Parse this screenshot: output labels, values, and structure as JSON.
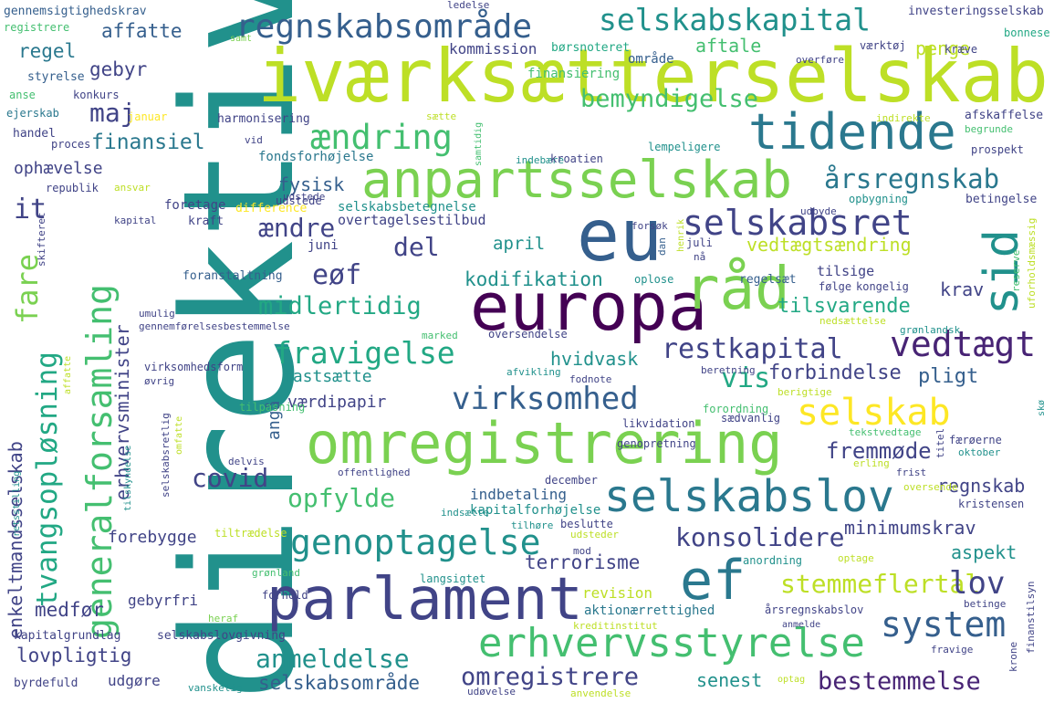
{
  "palette": [
    "#440154",
    "#482475",
    "#414487",
    "#355f8d",
    "#2a788e",
    "#21918c",
    "#22a884",
    "#44bf70",
    "#7ad151",
    "#bddf26",
    "#fde725"
  ],
  "words": [
    {
      "text": "direktiv",
      "color": "#21918c"
    },
    {
      "text": "iværksætterselskab",
      "color": "#bddf26"
    },
    {
      "text": "europa",
      "color": "#440154"
    },
    {
      "text": "eu",
      "color": "#355f8d"
    },
    {
      "text": "omregistrering",
      "color": "#7ad151"
    },
    {
      "text": "parlament",
      "color": "#414487"
    },
    {
      "text": "anpartsselskab",
      "color": "#7ad151"
    },
    {
      "text": "råd",
      "color": "#7ad151"
    },
    {
      "text": "tidende",
      "color": "#2a788e"
    },
    {
      "text": "selskabslov",
      "color": "#2a788e"
    },
    {
      "text": "ef",
      "color": "#2a788e"
    },
    {
      "text": "erhvervsstyrelse",
      "color": "#44bf70"
    },
    {
      "text": "regnskabsområde",
      "color": "#355f8d"
    },
    {
      "text": "selskabskapital",
      "color": "#21918c"
    },
    {
      "text": "generalforsamling",
      "color": "#44bf70"
    },
    {
      "text": "genoptagelse",
      "color": "#21918c"
    },
    {
      "text": "selskabsret",
      "color": "#414487"
    },
    {
      "text": "sid",
      "color": "#21918c"
    },
    {
      "text": "selskab",
      "color": "#fde725"
    },
    {
      "text": "tvangsopløsning",
      "color": "#22a884"
    },
    {
      "text": "vedtægt",
      "color": "#482475"
    },
    {
      "text": "virksomhed",
      "color": "#355f8d"
    },
    {
      "text": "fravigelse",
      "color": "#22a884"
    },
    {
      "text": "ændring",
      "color": "#44bf70"
    },
    {
      "text": "fare",
      "color": "#7ad151"
    },
    {
      "text": "midlertidig",
      "color": "#22a884"
    },
    {
      "text": "restkapital",
      "color": "#414487"
    },
    {
      "text": "bemyndigelse",
      "color": "#44bf70"
    },
    {
      "text": "årsregnskab",
      "color": "#2a788e"
    },
    {
      "text": "system",
      "color": "#355f8d"
    },
    {
      "text": "opfylde",
      "color": "#44bf70"
    },
    {
      "text": "konsolidere",
      "color": "#414487"
    },
    {
      "text": "omregistrere",
      "color": "#414487"
    },
    {
      "text": "anmeldelse",
      "color": "#21918c"
    },
    {
      "text": "stemmeflertal",
      "color": "#bddf26"
    },
    {
      "text": "bestemmelse",
      "color": "#482475"
    },
    {
      "text": "enkeltmandsselskab",
      "color": "#414487"
    },
    {
      "text": "erhvervsminister",
      "color": "#414487"
    },
    {
      "text": "lov",
      "color": "#414487"
    },
    {
      "text": "fremmøde",
      "color": "#414487"
    },
    {
      "text": "covid",
      "color": "#414487"
    },
    {
      "text": "eøf",
      "color": "#414487"
    },
    {
      "text": "ændre",
      "color": "#414487"
    },
    {
      "text": "del",
      "color": "#414487"
    },
    {
      "text": "vis",
      "color": "#22a884"
    },
    {
      "text": "it",
      "color": "#414487"
    },
    {
      "text": "maj",
      "color": "#414487"
    },
    {
      "text": "finansiel",
      "color": "#2a788e"
    },
    {
      "text": "affatte",
      "color": "#355f8d"
    },
    {
      "text": "regel",
      "color": "#2a788e"
    },
    {
      "text": "gebyr",
      "color": "#414487"
    },
    {
      "text": "fysisk",
      "color": "#355f8d"
    },
    {
      "text": "hvidvask",
      "color": "#21918c"
    },
    {
      "text": "fastsætte",
      "color": "#21918c"
    },
    {
      "text": "værdipapir",
      "color": "#414487"
    },
    {
      "text": "forbindelse",
      "color": "#414487"
    },
    {
      "text": "pligt",
      "color": "#355f8d"
    },
    {
      "text": "kodifikation",
      "color": "#21918c"
    },
    {
      "text": "vedtægtsændring",
      "color": "#bddf26"
    },
    {
      "text": "tilsvarende",
      "color": "#22a884"
    },
    {
      "text": "krav",
      "color": "#414487"
    },
    {
      "text": "april",
      "color": "#21918c"
    },
    {
      "text": "penge",
      "color": "#bddf26"
    },
    {
      "text": "aftale",
      "color": "#44bf70"
    },
    {
      "text": "ophævelse",
      "color": "#414487"
    },
    {
      "text": "medfør",
      "color": "#414487"
    },
    {
      "text": "lovpligtig",
      "color": "#414487"
    },
    {
      "text": "udgøre",
      "color": "#414487"
    },
    {
      "text": "selskabsområde",
      "color": "#355f8d"
    },
    {
      "text": "senest",
      "color": "#21918c"
    },
    {
      "text": "terrorisme",
      "color": "#414487"
    },
    {
      "text": "minimumskrav",
      "color": "#414487"
    },
    {
      "text": "aspekt",
      "color": "#21918c"
    },
    {
      "text": "regnskab",
      "color": "#414487"
    },
    {
      "text": "indbetaling",
      "color": "#355f8d"
    },
    {
      "text": "kapitalforhøjelse",
      "color": "#21918c"
    },
    {
      "text": "forebygge",
      "color": "#414487"
    },
    {
      "text": "gebyrfri",
      "color": "#414487"
    },
    {
      "text": "revision",
      "color": "#bddf26"
    },
    {
      "text": "aktionærrettighed",
      "color": "#2a788e"
    },
    {
      "text": "selskabslovgivning",
      "color": "#414487"
    },
    {
      "text": "kapitalgrundlag",
      "color": "#414487"
    },
    {
      "text": "byrdefuld",
      "color": "#414487"
    },
    {
      "text": "angå",
      "color": "#355f8d"
    },
    {
      "text": "selskabsbetegnelse",
      "color": "#21918c"
    },
    {
      "text": "overtagelsestilbud",
      "color": "#414487"
    },
    {
      "text": "fondsforhøjelse",
      "color": "#2a788e"
    },
    {
      "text": "kommission",
      "color": "#414487"
    },
    {
      "text": "børsnoteret",
      "color": "#22a884"
    },
    {
      "text": "finansiering",
      "color": "#44bf70"
    },
    {
      "text": "område",
      "color": "#355f8d"
    },
    {
      "text": "harmonisering",
      "color": "#414487"
    },
    {
      "text": "foretage",
      "color": "#414487"
    },
    {
      "text": "kraft",
      "color": "#414487"
    },
    {
      "text": "difference",
      "color": "#fde725"
    },
    {
      "text": "juni",
      "color": "#414487"
    },
    {
      "text": "udstede",
      "color": "#414487"
    },
    {
      "text": "foranstaltning",
      "color": "#355f8d"
    },
    {
      "text": "regelsæt",
      "color": "#355f8d"
    },
    {
      "text": "oplose",
      "color": "#21918c"
    },
    {
      "text": "tilsige",
      "color": "#414487"
    },
    {
      "text": "følge",
      "color": "#414487"
    },
    {
      "text": "kongelig",
      "color": "#414487"
    },
    {
      "text": "reserve",
      "color": "#44bf70"
    },
    {
      "text": "uforholdsmæssig",
      "color": "#bddf26"
    },
    {
      "text": "gennemsigtighedskrav",
      "color": "#355f8d"
    },
    {
      "text": "registrere",
      "color": "#44bf70"
    },
    {
      "text": "styrelse",
      "color": "#355f8d"
    },
    {
      "text": "anse",
      "color": "#44bf70"
    },
    {
      "text": "ejerskab",
      "color": "#2a788e"
    },
    {
      "text": "handel",
      "color": "#414487"
    },
    {
      "text": "proces",
      "color": "#414487"
    },
    {
      "text": "republik",
      "color": "#414487"
    },
    {
      "text": "konkurs",
      "color": "#414487"
    },
    {
      "text": "januar",
      "color": "#fde725"
    },
    {
      "text": "samt",
      "color": "#7ad151"
    },
    {
      "text": "ledelse",
      "color": "#414487"
    },
    {
      "text": "investeringsselskab",
      "color": "#414487"
    },
    {
      "text": "værktøj",
      "color": "#414487"
    },
    {
      "text": "kræve",
      "color": "#414487"
    },
    {
      "text": "bonnese",
      "color": "#22a884"
    },
    {
      "text": "overføre",
      "color": "#414487"
    },
    {
      "text": "afskaffelse",
      "color": "#414487"
    },
    {
      "text": "begrunde",
      "color": "#44bf70"
    },
    {
      "text": "indirekte",
      "color": "#bddf26"
    },
    {
      "text": "prospekt",
      "color": "#414487"
    },
    {
      "text": "lempeligere",
      "color": "#21918c"
    },
    {
      "text": "indebære",
      "color": "#21918c"
    },
    {
      "text": "kroatien",
      "color": "#414487"
    },
    {
      "text": "opbygning",
      "color": "#21918c"
    },
    {
      "text": "betingelse",
      "color": "#414487"
    },
    {
      "text": "udbyde",
      "color": "#414487"
    },
    {
      "text": "henrik",
      "color": "#bddf26"
    },
    {
      "text": "juli",
      "color": "#414487"
    },
    {
      "text": "nå",
      "color": "#414487"
    },
    {
      "text": "dan",
      "color": "#355f8d"
    },
    {
      "text": "tilpasning",
      "color": "#44bf70"
    },
    {
      "text": "likvidation",
      "color": "#414487"
    },
    {
      "text": "sædvanlig",
      "color": "#414487"
    },
    {
      "text": "genopretning",
      "color": "#414487"
    },
    {
      "text": "tekstvedtage",
      "color": "#44bf70"
    },
    {
      "text": "færøerne",
      "color": "#414487"
    },
    {
      "text": "titel",
      "color": "#414487"
    },
    {
      "text": "oktober",
      "color": "#21918c"
    },
    {
      "text": "offentlighed",
      "color": "#414487"
    },
    {
      "text": "erling",
      "color": "#bddf26"
    },
    {
      "text": "frist",
      "color": "#414487"
    },
    {
      "text": "oversende",
      "color": "#bddf26"
    },
    {
      "text": "delvis",
      "color": "#414487"
    },
    {
      "text": "december",
      "color": "#414487"
    },
    {
      "text": "indsætte",
      "color": "#21918c"
    },
    {
      "text": "tilhøre",
      "color": "#21918c"
    },
    {
      "text": "beslutte",
      "color": "#414487"
    },
    {
      "text": "kristensen",
      "color": "#414487"
    },
    {
      "text": "tiltrædelse",
      "color": "#bddf26"
    },
    {
      "text": "udsteder",
      "color": "#bddf26"
    },
    {
      "text": "optage",
      "color": "#bddf26"
    },
    {
      "text": "mod",
      "color": "#414487"
    },
    {
      "text": "grønland",
      "color": "#44bf70"
    },
    {
      "text": "forhold",
      "color": "#414487"
    },
    {
      "text": "langsigtet",
      "color": "#21918c"
    },
    {
      "text": "anordning",
      "color": "#21918c"
    },
    {
      "text": "heraf",
      "color": "#7ad151"
    },
    {
      "text": "kreditinstitut",
      "color": "#bddf26"
    },
    {
      "text": "årsregnskabslov",
      "color": "#414487"
    },
    {
      "text": "anmelde",
      "color": "#414487"
    },
    {
      "text": "betinge",
      "color": "#414487"
    },
    {
      "text": "finanstilsyn",
      "color": "#414487"
    },
    {
      "text": "krone",
      "color": "#414487"
    },
    {
      "text": "fravige",
      "color": "#414487"
    },
    {
      "text": "vanskelig",
      "color": "#21918c"
    },
    {
      "text": "udøvelse",
      "color": "#414487"
    },
    {
      "text": "anvendelse",
      "color": "#bddf26"
    },
    {
      "text": "optag",
      "color": "#bddf26"
    },
    {
      "text": "forordning",
      "color": "#44bf70"
    },
    {
      "text": "berigtige",
      "color": "#bddf26"
    },
    {
      "text": "beretning",
      "color": "#414487"
    },
    {
      "text": "fodnote",
      "color": "#414487"
    },
    {
      "text": "afvikling",
      "color": "#21918c"
    },
    {
      "text": "øvrig",
      "color": "#414487"
    },
    {
      "text": "virksomhedsform",
      "color": "#414487"
    },
    {
      "text": "marked",
      "color": "#44bf70"
    },
    {
      "text": "oversendelse",
      "color": "#414487"
    },
    {
      "text": "gennemførelsesbestemmelse",
      "color": "#414487"
    },
    {
      "text": "nedsættelse",
      "color": "#bddf26"
    },
    {
      "text": "grønlandsk",
      "color": "#21918c"
    },
    {
      "text": "umulig",
      "color": "#414487"
    },
    {
      "text": "omfatte",
      "color": "#bddf26"
    },
    {
      "text": "affatte",
      "color": "#bddf26"
    },
    {
      "text": "tilskyndelse",
      "color": "#21918c"
    },
    {
      "text": "selskabsretlig",
      "color": "#414487"
    },
    {
      "text": "retsstilling",
      "color": "#21918c"
    },
    {
      "text": "ansvar",
      "color": "#bddf26"
    },
    {
      "text": "skifteret",
      "color": "#414487"
    },
    {
      "text": "kapital",
      "color": "#414487"
    },
    {
      "text": "udstede",
      "color": "#414487"
    },
    {
      "text": "forsøk",
      "color": "#414487"
    },
    {
      "text": "vid",
      "color": "#414487"
    },
    {
      "text": "sætte",
      "color": "#bddf26"
    },
    {
      "text": "samtidig",
      "color": "#44bf70"
    },
    {
      "text": "skø",
      "color": "#21918c"
    }
  ]
}
